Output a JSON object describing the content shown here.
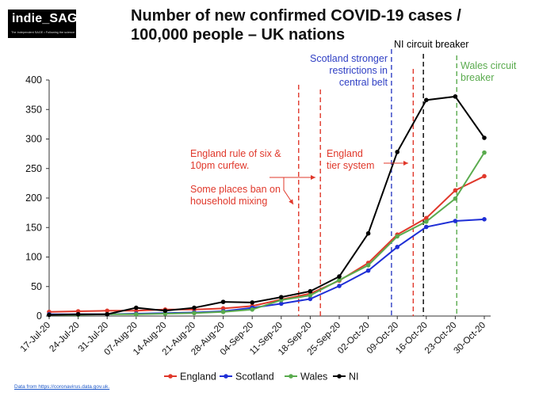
{
  "logo": {
    "name": "indie_SAGE",
    "tagline": "The Independent SAGE • Following the science"
  },
  "source_note": "Data from https://coronavirus.data.gov.uk.",
  "chart_data": {
    "type": "line",
    "title": "Number of new confirmed COVID-19 cases / 100,000 people – UK nations",
    "title_lines": [
      "Number of new confirmed COVID-19 cases /",
      "100,000 people – UK nations"
    ],
    "xlabel": "",
    "ylabel": "",
    "ylim": [
      0,
      400
    ],
    "yticks": [
      0,
      50,
      100,
      150,
      200,
      250,
      300,
      350,
      400
    ],
    "categories": [
      "17-Jul-20",
      "24-Jul-20",
      "31-Jul-20",
      "07-Aug-20",
      "14-Aug-20",
      "21-Aug-20",
      "28-Aug-20",
      "04-Sep-20",
      "11-Sep-20",
      "18-Sep-20",
      "25-Sep-20",
      "02-Oct-20",
      "09-Oct-20",
      "16-Oct-20",
      "23-Oct-20",
      "30-Oct-20"
    ],
    "legend_position": "bottom",
    "series": [
      {
        "name": "England",
        "color": "#e0382b",
        "values": [
          7,
          8,
          9,
          9,
          11,
          11,
          13,
          17,
          28,
          38,
          60,
          90,
          138,
          166,
          213,
          237
        ]
      },
      {
        "name": "Scotland",
        "color": "#1f2fd6",
        "values": [
          3,
          3,
          3,
          4,
          5,
          6,
          8,
          14,
          21,
          29,
          51,
          77,
          117,
          151,
          161,
          164
        ]
      },
      {
        "name": "Wales",
        "color": "#5aab4e",
        "values": [
          2,
          2,
          3,
          3,
          4,
          5,
          7,
          11,
          27,
          35,
          61,
          86,
          135,
          160,
          199,
          277
        ]
      },
      {
        "name": "NI",
        "color": "#000000",
        "values": [
          2,
          3,
          3,
          14,
          9,
          14,
          24,
          23,
          32,
          42,
          67,
          140,
          278,
          366,
          372,
          302
        ]
      }
    ],
    "annotations": [
      {
        "name": "england-rule-of-six",
        "lines": [
          "England rule of six &",
          "10pm curfew.",
          "",
          "Some places ban on",
          "household mixing"
        ],
        "color": "#e0382b"
      },
      {
        "name": "england-tier-system",
        "lines": [
          "England",
          "tier system"
        ],
        "color": "#e0382b"
      },
      {
        "name": "scotland-restrictions",
        "lines": [
          "Scotland stronger",
          "restrictions in",
          "central belt"
        ],
        "color": "#2f3fc4"
      },
      {
        "name": "ni-circuit-breaker",
        "lines": [
          "NI circuit breaker"
        ],
        "color": "#000000"
      },
      {
        "name": "wales-circuit-breaker",
        "lines": [
          "Wales  circuit",
          "breaker"
        ],
        "color": "#5aab4e"
      }
    ]
  }
}
